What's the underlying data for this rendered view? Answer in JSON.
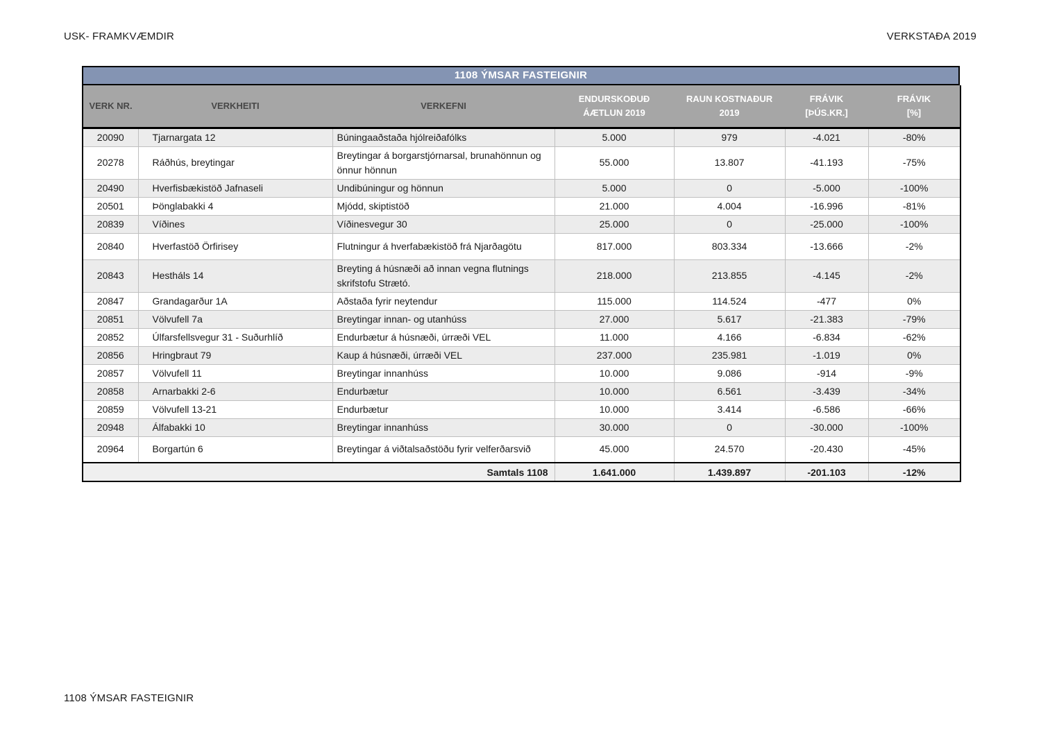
{
  "page": {
    "header_left": "USK- FRAMKVÆMDIR",
    "header_right": "VERKSTAÐA 2019",
    "footer": "1108 ÝMSAR FASTEIGNIR"
  },
  "colors": {
    "title_bar_blue": "#8494B3",
    "header_gray": "#A6A6A6",
    "row_stripe": "#ECECEC",
    "grid_line": "#BFBFBF"
  },
  "table": {
    "title": "1108 ÝMSAR FASTEIGNIR",
    "columns": [
      {
        "key": "nr",
        "label": "VERK NR."
      },
      {
        "key": "heiti",
        "label": "VERKHEITI"
      },
      {
        "key": "efni",
        "label": "VERKEFNI"
      },
      {
        "key": "aetlun",
        "label": "ENDURSKOÐUÐ\nÁÆTLUN 2019"
      },
      {
        "key": "raun",
        "label": "RAUN KOSTNAÐUR\n2019"
      },
      {
        "key": "fravik",
        "label": "FRÁVIK\n[ÞÚS.KR.]"
      },
      {
        "key": "pct",
        "label": "FRÁVIK\n[%]"
      }
    ],
    "rows": [
      {
        "nr": "20090",
        "heiti": "Tjarnargata 12",
        "efni": "Búningaaðstaða hjólreiðafólks",
        "aetlun": "5.000",
        "raun": "979",
        "fravik": "-4.021",
        "pct": "-80%"
      },
      {
        "nr": "20278",
        "heiti": "Ráðhús, breytingar",
        "efni": "Breytingar á borgarstjórnarsal, brunahönnun og önnur hönnun",
        "aetlun": "55.000",
        "raun": "13.807",
        "fravik": "-41.193",
        "pct": "-75%"
      },
      {
        "nr": "20490",
        "heiti": "Hverfisbækistöð Jafnaseli",
        "efni": "Undibúningur og hönnun",
        "aetlun": "5.000",
        "raun": "0",
        "fravik": "-5.000",
        "pct": "-100%"
      },
      {
        "nr": "20501",
        "heiti": "Þönglabakki 4",
        "efni": "Mjódd, skiptistöð",
        "aetlun": "21.000",
        "raun": "4.004",
        "fravik": "-16.996",
        "pct": "-81%"
      },
      {
        "nr": "20839",
        "heiti": "Víðines",
        "efni": "Víðinesvegur 30",
        "aetlun": "25.000",
        "raun": "0",
        "fravik": "-25.000",
        "pct": "-100%"
      },
      {
        "nr": "20840",
        "heiti": "Hverfastöð  Örfirisey",
        "efni": "Flutningur á hverfabækistöð frá Njarðagötu",
        "aetlun": "817.000",
        "raun": "803.334",
        "fravik": "-13.666",
        "pct": "-2%"
      },
      {
        "nr": "20843",
        "heiti": "Hestháls 14",
        "efni": "Breyting á húsnæði að innan vegna flutnings skrifstofu Strætó.",
        "aetlun": "218.000",
        "raun": "213.855",
        "fravik": "-4.145",
        "pct": "-2%"
      },
      {
        "nr": "20847",
        "heiti": "Grandagarður 1A",
        "efni": "Aðstaða fyrir neytendur",
        "aetlun": "115.000",
        "raun": "114.524",
        "fravik": "-477",
        "pct": "0%"
      },
      {
        "nr": "20851",
        "heiti": "Völvufell 7a",
        "efni": "Breytingar innan- og utanhúss",
        "aetlun": "27.000",
        "raun": "5.617",
        "fravik": "-21.383",
        "pct": "-79%"
      },
      {
        "nr": "20852",
        "heiti": "Úlfarsfellsvegur 31 - Suðurhlíð",
        "efni": "Endurbætur á húsnæði, úrræði VEL",
        "aetlun": "11.000",
        "raun": "4.166",
        "fravik": "-6.834",
        "pct": "-62%"
      },
      {
        "nr": "20856",
        "heiti": "Hringbraut 79",
        "efni": "Kaup á húsnæði, úrræði VEL",
        "aetlun": "237.000",
        "raun": "235.981",
        "fravik": "-1.019",
        "pct": "0%"
      },
      {
        "nr": "20857",
        "heiti": "Völvufell 11",
        "efni": "Breytingar innanhúss",
        "aetlun": "10.000",
        "raun": "9.086",
        "fravik": "-914",
        "pct": "-9%"
      },
      {
        "nr": "20858",
        "heiti": "Arnarbakki 2-6",
        "efni": "Endurbætur",
        "aetlun": "10.000",
        "raun": "6.561",
        "fravik": "-3.439",
        "pct": "-34%"
      },
      {
        "nr": "20859",
        "heiti": "Völvufell 13-21",
        "efni": "Endurbætur",
        "aetlun": "10.000",
        "raun": "3.414",
        "fravik": "-6.586",
        "pct": "-66%"
      },
      {
        "nr": "20948",
        "heiti": "Álfabakki 10",
        "efni": "Breytingar innanhúss",
        "aetlun": "30.000",
        "raun": "0",
        "fravik": "-30.000",
        "pct": "-100%"
      },
      {
        "nr": "20964",
        "heiti": "Borgartún 6",
        "efni": "Breytingar á viðtalsaðstöðu fyrir velferðarsvið",
        "aetlun": "45.000",
        "raun": "24.570",
        "fravik": "-20.430",
        "pct": "-45%"
      }
    ],
    "totals": {
      "label": "Samtals 1108",
      "aetlun": "1.641.000",
      "raun": "1.439.897",
      "fravik": "-201.103",
      "pct": "-12%"
    }
  }
}
